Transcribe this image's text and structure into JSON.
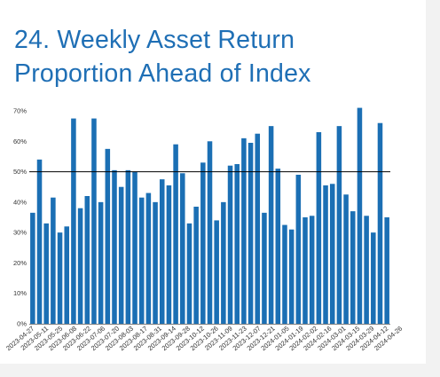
{
  "title_lines": [
    "24. Weekly Asset Return",
    "Proportion Ahead of Index"
  ],
  "colors": {
    "title": "#1f6fb5",
    "bar": "#1b6fb4",
    "reference_line": "#000000",
    "axis": "#555555"
  },
  "chart_data": {
    "type": "bar",
    "title": "24. Weekly Asset Return Proportion Ahead of Index",
    "xlabel": "",
    "ylabel": "",
    "ylim": [
      0,
      0.7
    ],
    "yticks": [
      0,
      0.1,
      0.2,
      0.3,
      0.4,
      0.5,
      0.6,
      0.7
    ],
    "ytick_labels": [
      "0%",
      "10%",
      "20%",
      "30%",
      "40%",
      "50%",
      "60%",
      "70%"
    ],
    "grid": false,
    "reference_line": 0.5,
    "xtick_labels": [
      "2023-04-27",
      "2023-05-11",
      "2023-05-25",
      "2023-06-08",
      "2023-06-22",
      "2023-07-06",
      "2023-07-20",
      "2023-08-03",
      "2023-08-17",
      "2023-08-31",
      "2023-09-14",
      "2023-09-28",
      "2023-10-12",
      "2023-10-26",
      "2023-11-09",
      "2023-11-23",
      "2023-12-07",
      "2023-12-21",
      "2024-01-05",
      "2024-01-19",
      "2024-02-02",
      "2024-02-16",
      "2024-03-01",
      "2024-03-15",
      "2024-03-29",
      "2024-04-12",
      "2024-04-26"
    ],
    "values": [
      0.365,
      0.54,
      0.33,
      0.415,
      0.3,
      0.32,
      0.675,
      0.38,
      0.42,
      0.675,
      0.4,
      0.575,
      0.505,
      0.45,
      0.505,
      0.5,
      0.415,
      0.43,
      0.4,
      0.475,
      0.455,
      0.59,
      0.495,
      0.33,
      0.385,
      0.53,
      0.6,
      0.34,
      0.4,
      0.52,
      0.525,
      0.61,
      0.595,
      0.625,
      0.365,
      0.65,
      0.51,
      0.325,
      0.31,
      0.49,
      0.35,
      0.355,
      0.63,
      0.455,
      0.46,
      0.65,
      0.425,
      0.37,
      0.71,
      0.355,
      0.3,
      0.66,
      0.35
    ]
  }
}
